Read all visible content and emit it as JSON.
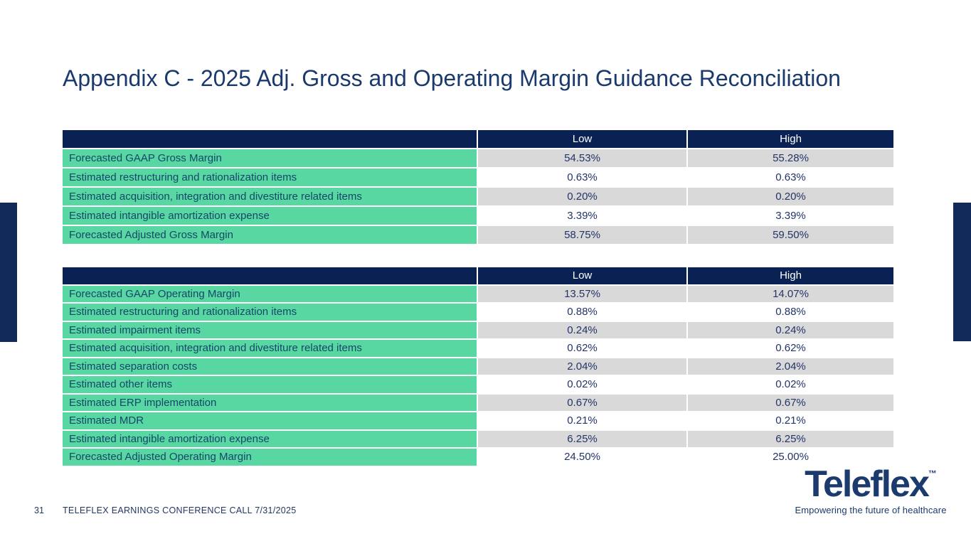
{
  "slide": {
    "title": "Appendix C - 2025 Adj. Gross and Operating Margin Guidance Reconciliation",
    "footer": {
      "page_number": "31",
      "text": "TELEFLEX EARNINGS CONFERENCE CALL 7/31/2025"
    },
    "logo": {
      "brand": "Teleflex",
      "trademark": "™",
      "tagline": "Empowering the future of healthcare"
    }
  },
  "colors": {
    "header_navy": "#0a2153",
    "accent_bar_navy": "#112a5a",
    "row_green": "#58d7a2",
    "row_gray": "#d9d9d9",
    "row_white": "#ffffff",
    "label_text": "#15476a",
    "value_text": "#233468",
    "title_text": "#1a3a6d",
    "logo_navy": "#1b3a6e"
  },
  "tables": [
    {
      "name": "gross-margin-reconciliation",
      "headers": [
        "",
        "Low",
        "High"
      ],
      "rows": [
        {
          "label": "Forecasted GAAP Gross Margin",
          "low": "54.53%",
          "high": "55.28%"
        },
        {
          "label": "Estimated restructuring and rationalization items",
          "low": "0.63%",
          "high": "0.63%"
        },
        {
          "label": "Estimated acquisition, integration and divestiture related items",
          "low": "0.20%",
          "high": "0.20%"
        },
        {
          "label": "Estimated intangible amortization expense",
          "low": "3.39%",
          "high": "3.39%"
        },
        {
          "label": "Forecasted Adjusted Gross Margin",
          "low": "58.75%",
          "high": "59.50%"
        }
      ]
    },
    {
      "name": "operating-margin-reconciliation",
      "headers": [
        "",
        "Low",
        "High"
      ],
      "rows": [
        {
          "label": "Forecasted GAAP Operating Margin",
          "low": "13.57%",
          "high": "14.07%"
        },
        {
          "label": "Estimated restructuring and rationalization items",
          "low": "0.88%",
          "high": "0.88%"
        },
        {
          "label": "Estimated impairment items",
          "low": "0.24%",
          "high": "0.24%"
        },
        {
          "label": "Estimated acquisition, integration and divestiture related items",
          "low": "0.62%",
          "high": "0.62%"
        },
        {
          "label": "Estimated separation costs",
          "low": "2.04%",
          "high": "2.04%"
        },
        {
          "label": "Estimated other items",
          "low": "0.02%",
          "high": "0.02%"
        },
        {
          "label": "Estimated ERP implementation",
          "low": "0.67%",
          "high": "0.67%"
        },
        {
          "label": "Estimated MDR",
          "low": "0.21%",
          "high": "0.21%"
        },
        {
          "label": "Estimated intangible amortization expense",
          "low": "6.25%",
          "high": "6.25%"
        },
        {
          "label": "Forecasted Adjusted Operating Margin",
          "low": "24.50%",
          "high": "25.00%"
        }
      ]
    }
  ]
}
